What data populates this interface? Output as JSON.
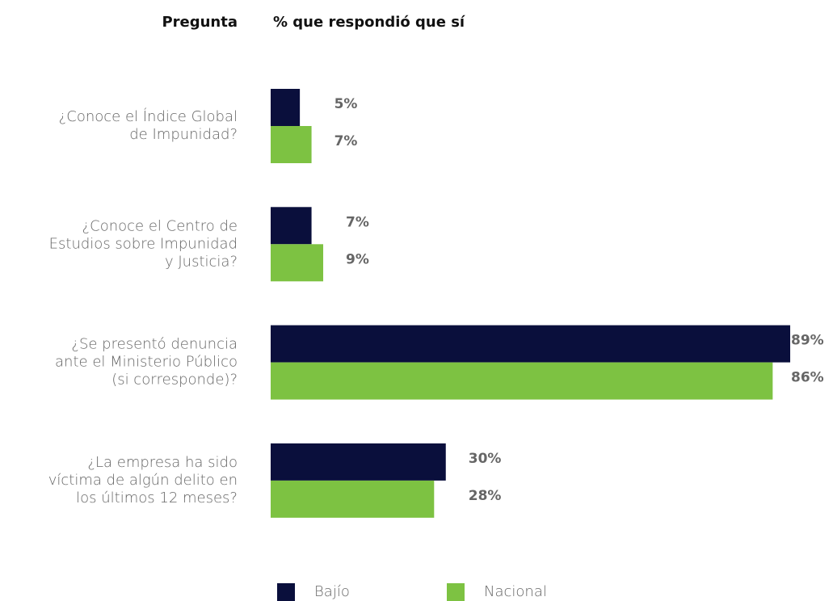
{
  "chart_data": {
    "type": "bar",
    "orientation": "horizontal",
    "column_headers": [
      "Pregunta",
      "% que respondió que sí"
    ],
    "categories": [
      [
        "¿Conoce el Índice Global",
        "de Impunidad?"
      ],
      [
        "¿Conoce el Centro de",
        "Estudios sobre Impunidad",
        "y Justicia?"
      ],
      [
        "¿Se presentó denuncia",
        "ante el Ministerio Público",
        "(si corresponde)?"
      ],
      [
        "¿La empresa ha sido",
        "víctima de algún delito en",
        "los últimos 12 meses?"
      ]
    ],
    "series": [
      {
        "name": "Bajío",
        "color": "#0a0f3c",
        "values": [
          5,
          7,
          89,
          30
        ],
        "value_labels": [
          "5%",
          "7%",
          "89%",
          "30%"
        ]
      },
      {
        "name": "Nacional",
        "color": "#7dc242",
        "values": [
          7,
          9,
          86,
          28
        ],
        "value_labels": [
          "7%",
          "9%",
          "86%",
          "28%"
        ]
      }
    ],
    "legend": "bottom"
  }
}
